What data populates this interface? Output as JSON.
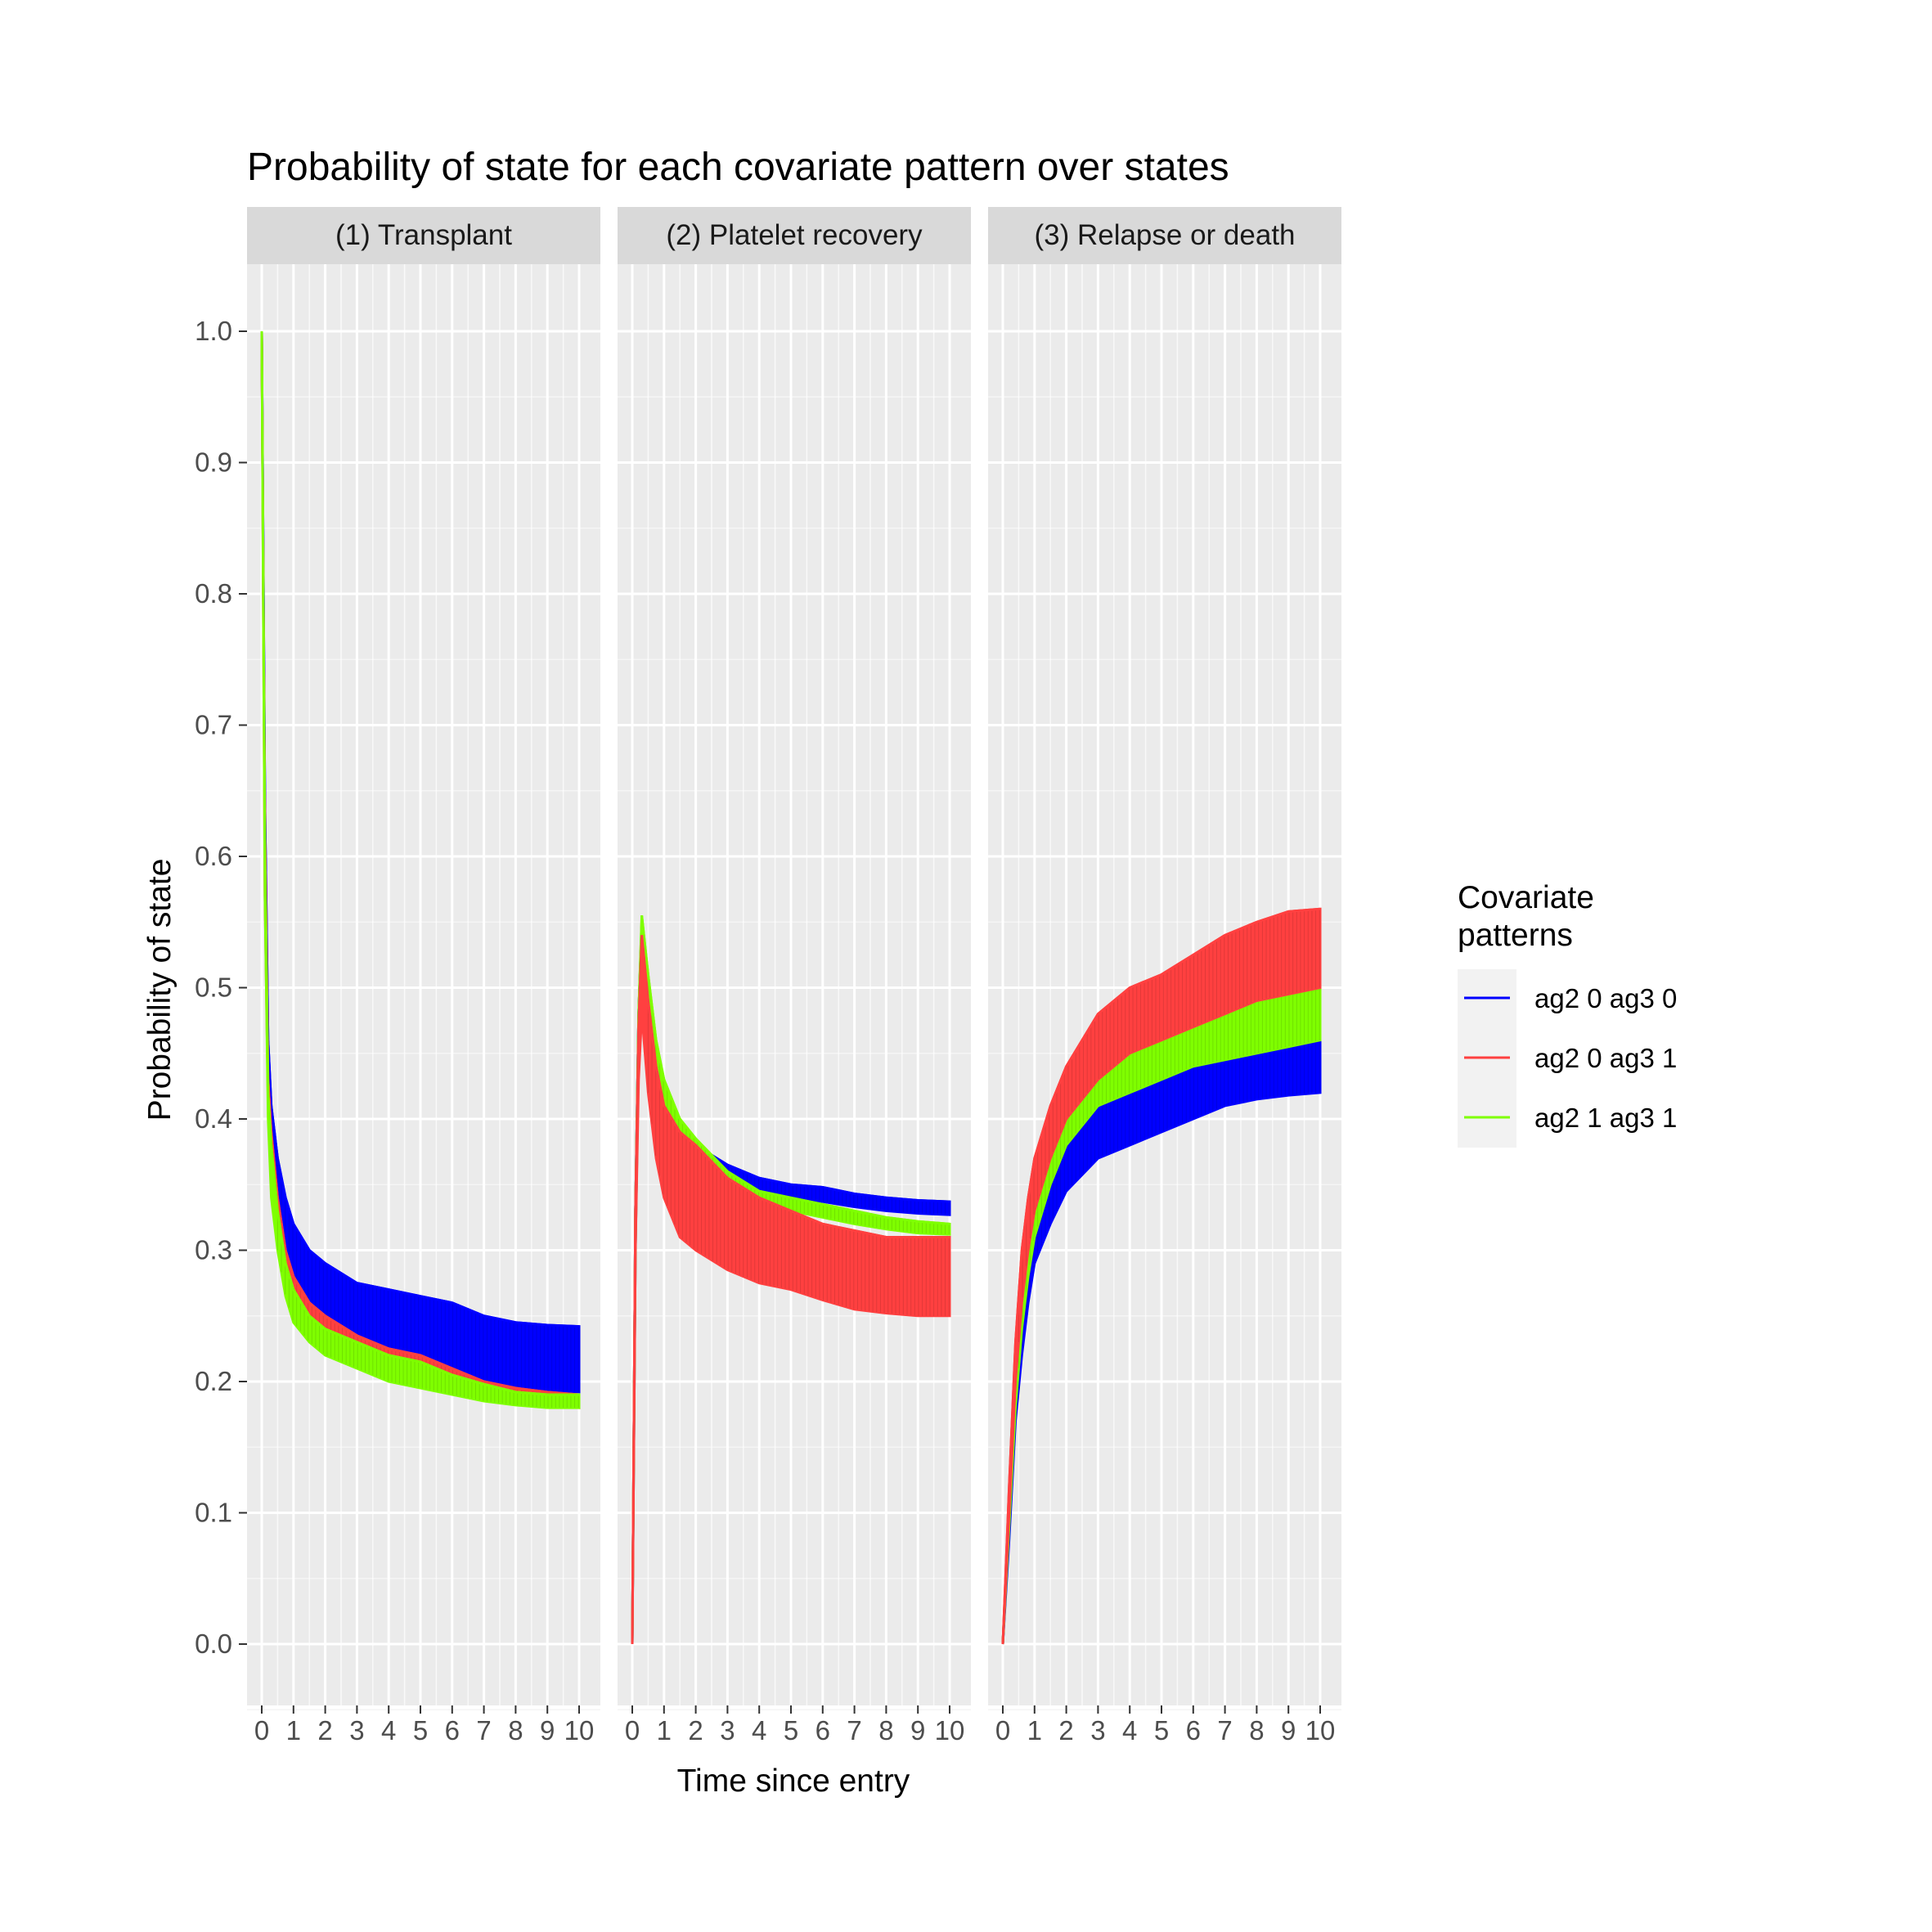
{
  "chart_data": {
    "type": "line",
    "title": "Probability of state for each covariate pattern over states",
    "xlabel": "Time since entry",
    "ylabel": "Probability of state",
    "xlim": [
      0,
      10
    ],
    "ylim": [
      0,
      1
    ],
    "x_ticks": [
      "0",
      "1",
      "2",
      "3",
      "4",
      "5",
      "6",
      "7",
      "8",
      "9",
      "10"
    ],
    "y_ticks": [
      "0.0",
      "0.1",
      "0.2",
      "0.3",
      "0.4",
      "0.5",
      "0.6",
      "0.7",
      "0.8",
      "0.9",
      "1.0"
    ],
    "grid": true,
    "legend": {
      "title": "Covariate\npatterns",
      "placement": "right"
    },
    "panels": [
      {
        "label": "(1) Transplant",
        "series": [
          {
            "name": "ag2 0 ag3 0",
            "color": "#0000ff",
            "x": [
              0,
              0.05,
              0.1,
              0.2,
              0.3,
              0.5,
              0.75,
              1,
              1.5,
              2,
              3,
              4,
              5,
              6,
              7,
              8,
              9,
              10
            ],
            "y": [
              1.0,
              0.82,
              0.64,
              0.46,
              0.41,
              0.37,
              0.34,
              0.32,
              0.3,
              0.29,
              0.275,
              0.27,
              0.265,
              0.26,
              0.25,
              0.245,
              0.243,
              0.242
            ],
            "low": [
              1.0,
              0.8,
              0.6,
              0.43,
              0.37,
              0.32,
              0.29,
              0.27,
              0.25,
              0.235,
              0.225,
              0.22,
              0.215,
              0.21,
              0.2,
              0.195,
              0.193,
              0.192
            ]
          },
          {
            "name": "ag2 0 ag3 1",
            "color": "#ff4040",
            "x": [
              0,
              0.05,
              0.1,
              0.2,
              0.3,
              0.5,
              0.75,
              1,
              1.5,
              2,
              3,
              4,
              5,
              6,
              7,
              8,
              9,
              10
            ],
            "y": [
              1.0,
              0.8,
              0.62,
              0.43,
              0.39,
              0.34,
              0.3,
              0.28,
              0.26,
              0.25,
              0.235,
              0.225,
              0.22,
              0.21,
              0.2,
              0.195,
              0.192,
              0.19
            ],
            "low": [
              1.0,
              0.78,
              0.57,
              0.41,
              0.35,
              0.31,
              0.27,
              0.25,
              0.235,
              0.225,
              0.215,
              0.205,
              0.2,
              0.195,
              0.19,
              0.185,
              0.182,
              0.18
            ]
          },
          {
            "name": "ag2 1 ag3 1",
            "color": "#7fff00",
            "x": [
              0,
              0.05,
              0.1,
              0.2,
              0.3,
              0.5,
              0.75,
              1,
              1.5,
              2,
              3,
              4,
              5,
              6,
              7,
              8,
              9,
              10
            ],
            "y": [
              1.0,
              0.8,
              0.6,
              0.42,
              0.38,
              0.33,
              0.29,
              0.27,
              0.25,
              0.24,
              0.23,
              0.22,
              0.215,
              0.205,
              0.198,
              0.192,
              0.19,
              0.19
            ],
            "low": [
              1.0,
              0.78,
              0.57,
              0.4,
              0.34,
              0.3,
              0.265,
              0.245,
              0.23,
              0.22,
              0.21,
              0.2,
              0.195,
              0.19,
              0.185,
              0.182,
              0.18,
              0.18
            ]
          }
        ]
      },
      {
        "label": "(2) Platelet recovery",
        "series": [
          {
            "name": "ag2 0 ag3 0",
            "color": "#0000ff",
            "x": [
              0,
              0.1,
              0.2,
              0.3,
              0.5,
              0.75,
              1,
              1.5,
              2,
              3,
              4,
              5,
              6,
              7,
              8,
              9,
              10
            ],
            "y": [
              0,
              0.33,
              0.48,
              0.55,
              0.5,
              0.45,
              0.42,
              0.39,
              0.38,
              0.365,
              0.355,
              0.35,
              0.348,
              0.343,
              0.34,
              0.338,
              0.337
            ],
            "low": [
              0,
              0.3,
              0.45,
              0.52,
              0.48,
              0.43,
              0.4,
              0.38,
              0.37,
              0.355,
              0.345,
              0.34,
              0.337,
              0.333,
              0.33,
              0.328,
              0.327
            ]
          },
          {
            "name": "ag2 0 ag3 1",
            "color": "#ff4040",
            "x": [
              0,
              0.1,
              0.2,
              0.3,
              0.5,
              0.75,
              1,
              1.5,
              2,
              3,
              4,
              5,
              6,
              7,
              8,
              9,
              10
            ],
            "y": [
              0,
              0.33,
              0.47,
              0.54,
              0.49,
              0.44,
              0.41,
              0.39,
              0.38,
              0.355,
              0.34,
              0.33,
              0.32,
              0.315,
              0.31,
              0.31,
              0.31
            ],
            "low": [
              0,
              0.3,
              0.43,
              0.48,
              0.42,
              0.37,
              0.34,
              0.31,
              0.3,
              0.285,
              0.275,
              0.27,
              0.262,
              0.255,
              0.252,
              0.25,
              0.25
            ]
          },
          {
            "name": "ag2 1 ag3 1",
            "color": "#7fff00",
            "x": [
              0,
              0.1,
              0.2,
              0.3,
              0.5,
              0.75,
              1,
              1.5,
              2,
              3,
              4,
              5,
              6,
              7,
              8,
              9,
              10
            ],
            "y": [
              0,
              0.33,
              0.48,
              0.555,
              0.51,
              0.46,
              0.43,
              0.4,
              0.385,
              0.36,
              0.345,
              0.34,
              0.335,
              0.33,
              0.325,
              0.322,
              0.32
            ],
            "low": [
              0,
              0.3,
              0.45,
              0.53,
              0.49,
              0.44,
              0.41,
              0.38,
              0.37,
              0.35,
              0.335,
              0.33,
              0.325,
              0.32,
              0.316,
              0.313,
              0.312
            ]
          }
        ]
      },
      {
        "label": "(3) Relapse or death",
        "series": [
          {
            "name": "ag2 0 ag3 0",
            "color": "#0000ff",
            "x": [
              0,
              0.2,
              0.4,
              0.6,
              0.8,
              1,
              1.5,
              2,
              3,
              4,
              5,
              6,
              7,
              8,
              9,
              10
            ],
            "y": [
              0,
              0.1,
              0.2,
              0.26,
              0.3,
              0.33,
              0.37,
              0.39,
              0.42,
              0.435,
              0.45,
              0.46,
              0.47,
              0.48,
              0.485,
              0.49
            ],
            "low": [
              0,
              0.08,
              0.17,
              0.22,
              0.26,
              0.29,
              0.32,
              0.345,
              0.37,
              0.38,
              0.39,
              0.4,
              0.41,
              0.415,
              0.418,
              0.42
            ]
          },
          {
            "name": "ag2 0 ag3 1",
            "color": "#ff4040",
            "x": [
              0,
              0.2,
              0.4,
              0.6,
              0.8,
              1,
              1.5,
              2,
              3,
              4,
              5,
              6,
              7,
              8,
              9,
              10
            ],
            "y": [
              0,
              0.12,
              0.23,
              0.3,
              0.34,
              0.37,
              0.41,
              0.44,
              0.48,
              0.5,
              0.51,
              0.525,
              0.54,
              0.55,
              0.558,
              0.56
            ],
            "low": [
              0,
              0.1,
              0.2,
              0.26,
              0.3,
              0.33,
              0.37,
              0.4,
              0.43,
              0.45,
              0.46,
              0.47,
              0.48,
              0.49,
              0.495,
              0.5
            ]
          },
          {
            "name": "ag2 1 ag3 1",
            "color": "#7fff00",
            "x": [
              0,
              0.2,
              0.4,
              0.6,
              0.8,
              1,
              1.5,
              2,
              3,
              4,
              5,
              6,
              7,
              8,
              9,
              10
            ],
            "y": [
              0,
              0.11,
              0.21,
              0.28,
              0.32,
              0.35,
              0.39,
              0.42,
              0.45,
              0.47,
              0.48,
              0.49,
              0.5,
              0.505,
              0.508,
              0.51
            ],
            "low": [
              0,
              0.09,
              0.18,
              0.24,
              0.28,
              0.31,
              0.35,
              0.38,
              0.41,
              0.42,
              0.43,
              0.44,
              0.445,
              0.45,
              0.455,
              0.46
            ]
          }
        ]
      }
    ]
  }
}
